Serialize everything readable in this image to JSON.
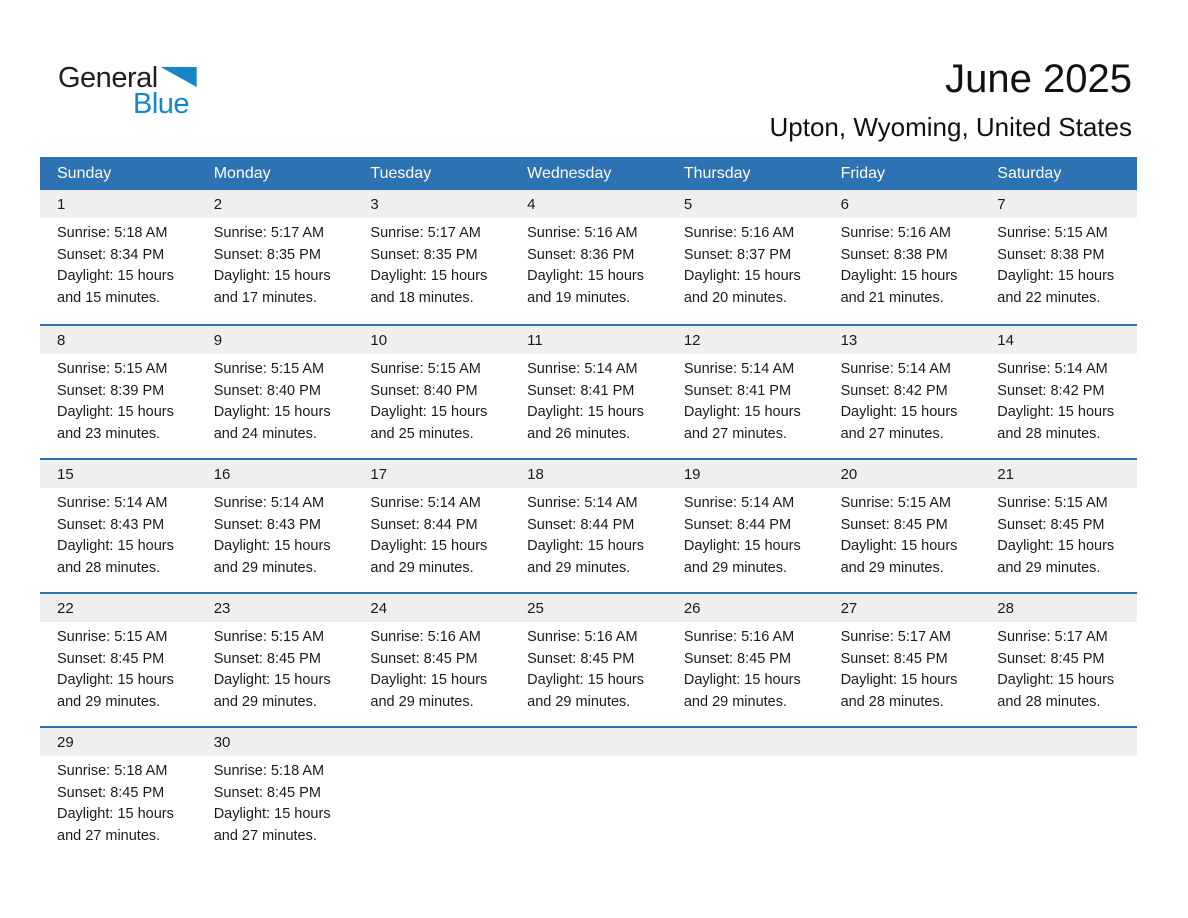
{
  "logo": {
    "general": "General",
    "blue": "Blue"
  },
  "header": {
    "title": "June 2025",
    "location": "Upton, Wyoming, United States"
  },
  "colors": {
    "header_bar_blue": "#2d72b2",
    "week_separator_blue": "#2d72b2",
    "day_band_gray": "#efefef",
    "logo_blue": "#1487c9"
  },
  "weekdays": [
    "Sunday",
    "Monday",
    "Tuesday",
    "Wednesday",
    "Thursday",
    "Friday",
    "Saturday"
  ],
  "weeks": [
    [
      {
        "day": "1",
        "sunrise": "Sunrise: 5:18 AM",
        "sunset": "Sunset: 8:34 PM",
        "daylight": "Daylight: 15 hours and 15 minutes."
      },
      {
        "day": "2",
        "sunrise": "Sunrise: 5:17 AM",
        "sunset": "Sunset: 8:35 PM",
        "daylight": "Daylight: 15 hours and 17 minutes."
      },
      {
        "day": "3",
        "sunrise": "Sunrise: 5:17 AM",
        "sunset": "Sunset: 8:35 PM",
        "daylight": "Daylight: 15 hours and 18 minutes."
      },
      {
        "day": "4",
        "sunrise": "Sunrise: 5:16 AM",
        "sunset": "Sunset: 8:36 PM",
        "daylight": "Daylight: 15 hours and 19 minutes."
      },
      {
        "day": "5",
        "sunrise": "Sunrise: 5:16 AM",
        "sunset": "Sunset: 8:37 PM",
        "daylight": "Daylight: 15 hours and 20 minutes."
      },
      {
        "day": "6",
        "sunrise": "Sunrise: 5:16 AM",
        "sunset": "Sunset: 8:38 PM",
        "daylight": "Daylight: 15 hours and 21 minutes."
      },
      {
        "day": "7",
        "sunrise": "Sunrise: 5:15 AM",
        "sunset": "Sunset: 8:38 PM",
        "daylight": "Daylight: 15 hours and 22 minutes."
      }
    ],
    [
      {
        "day": "8",
        "sunrise": "Sunrise: 5:15 AM",
        "sunset": "Sunset: 8:39 PM",
        "daylight": "Daylight: 15 hours and 23 minutes."
      },
      {
        "day": "9",
        "sunrise": "Sunrise: 5:15 AM",
        "sunset": "Sunset: 8:40 PM",
        "daylight": "Daylight: 15 hours and 24 minutes."
      },
      {
        "day": "10",
        "sunrise": "Sunrise: 5:15 AM",
        "sunset": "Sunset: 8:40 PM",
        "daylight": "Daylight: 15 hours and 25 minutes."
      },
      {
        "day": "11",
        "sunrise": "Sunrise: 5:14 AM",
        "sunset": "Sunset: 8:41 PM",
        "daylight": "Daylight: 15 hours and 26 minutes."
      },
      {
        "day": "12",
        "sunrise": "Sunrise: 5:14 AM",
        "sunset": "Sunset: 8:41 PM",
        "daylight": "Daylight: 15 hours and 27 minutes."
      },
      {
        "day": "13",
        "sunrise": "Sunrise: 5:14 AM",
        "sunset": "Sunset: 8:42 PM",
        "daylight": "Daylight: 15 hours and 27 minutes."
      },
      {
        "day": "14",
        "sunrise": "Sunrise: 5:14 AM",
        "sunset": "Sunset: 8:42 PM",
        "daylight": "Daylight: 15 hours and 28 minutes."
      }
    ],
    [
      {
        "day": "15",
        "sunrise": "Sunrise: 5:14 AM",
        "sunset": "Sunset: 8:43 PM",
        "daylight": "Daylight: 15 hours and 28 minutes."
      },
      {
        "day": "16",
        "sunrise": "Sunrise: 5:14 AM",
        "sunset": "Sunset: 8:43 PM",
        "daylight": "Daylight: 15 hours and 29 minutes."
      },
      {
        "day": "17",
        "sunrise": "Sunrise: 5:14 AM",
        "sunset": "Sunset: 8:44 PM",
        "daylight": "Daylight: 15 hours and 29 minutes."
      },
      {
        "day": "18",
        "sunrise": "Sunrise: 5:14 AM",
        "sunset": "Sunset: 8:44 PM",
        "daylight": "Daylight: 15 hours and 29 minutes."
      },
      {
        "day": "19",
        "sunrise": "Sunrise: 5:14 AM",
        "sunset": "Sunset: 8:44 PM",
        "daylight": "Daylight: 15 hours and 29 minutes."
      },
      {
        "day": "20",
        "sunrise": "Sunrise: 5:15 AM",
        "sunset": "Sunset: 8:45 PM",
        "daylight": "Daylight: 15 hours and 29 minutes."
      },
      {
        "day": "21",
        "sunrise": "Sunrise: 5:15 AM",
        "sunset": "Sunset: 8:45 PM",
        "daylight": "Daylight: 15 hours and 29 minutes."
      }
    ],
    [
      {
        "day": "22",
        "sunrise": "Sunrise: 5:15 AM",
        "sunset": "Sunset: 8:45 PM",
        "daylight": "Daylight: 15 hours and 29 minutes."
      },
      {
        "day": "23",
        "sunrise": "Sunrise: 5:15 AM",
        "sunset": "Sunset: 8:45 PM",
        "daylight": "Daylight: 15 hours and 29 minutes."
      },
      {
        "day": "24",
        "sunrise": "Sunrise: 5:16 AM",
        "sunset": "Sunset: 8:45 PM",
        "daylight": "Daylight: 15 hours and 29 minutes."
      },
      {
        "day": "25",
        "sunrise": "Sunrise: 5:16 AM",
        "sunset": "Sunset: 8:45 PM",
        "daylight": "Daylight: 15 hours and 29 minutes."
      },
      {
        "day": "26",
        "sunrise": "Sunrise: 5:16 AM",
        "sunset": "Sunset: 8:45 PM",
        "daylight": "Daylight: 15 hours and 29 minutes."
      },
      {
        "day": "27",
        "sunrise": "Sunrise: 5:17 AM",
        "sunset": "Sunset: 8:45 PM",
        "daylight": "Daylight: 15 hours and 28 minutes."
      },
      {
        "day": "28",
        "sunrise": "Sunrise: 5:17 AM",
        "sunset": "Sunset: 8:45 PM",
        "daylight": "Daylight: 15 hours and 28 minutes."
      }
    ],
    [
      {
        "day": "29",
        "sunrise": "Sunrise: 5:18 AM",
        "sunset": "Sunset: 8:45 PM",
        "daylight": "Daylight: 15 hours and 27 minutes."
      },
      {
        "day": "30",
        "sunrise": "Sunrise: 5:18 AM",
        "sunset": "Sunset: 8:45 PM",
        "daylight": "Daylight: 15 hours and 27 minutes."
      },
      null,
      null,
      null,
      null,
      null
    ]
  ]
}
